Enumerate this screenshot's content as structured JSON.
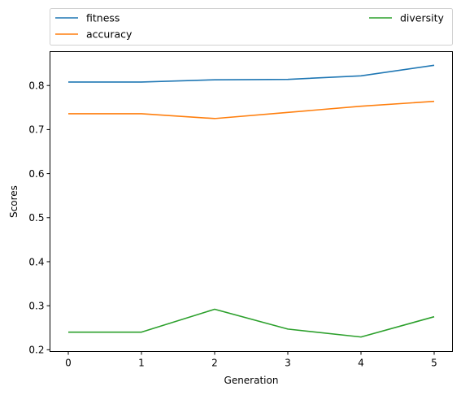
{
  "chart_data": {
    "type": "line",
    "x": [
      0,
      1,
      2,
      3,
      4,
      5
    ],
    "xticks": [
      "0",
      "1",
      "2",
      "3",
      "4",
      "5"
    ],
    "yticks": [
      "0.2",
      "0.3",
      "0.4",
      "0.5",
      "0.6",
      "0.7",
      "0.8"
    ],
    "xlabel": "Generation",
    "ylabel": "Scores",
    "xlim": [
      -0.25,
      5.25
    ],
    "ylim": [
      0.196,
      0.877
    ],
    "grid": false,
    "legend_placement": "top, above plot (2 columns)",
    "series": [
      {
        "name": "fitness",
        "color": "#1f77b4",
        "values": [
          0.808,
          0.808,
          0.813,
          0.814,
          0.822,
          0.846
        ]
      },
      {
        "name": "accuracy",
        "color": "#ff7f0e",
        "values": [
          0.736,
          0.736,
          0.725,
          0.739,
          0.753,
          0.764
        ]
      },
      {
        "name": "diversity",
        "color": "#2ca02c",
        "values": [
          0.24,
          0.24,
          0.292,
          0.247,
          0.229,
          0.275
        ]
      }
    ]
  }
}
